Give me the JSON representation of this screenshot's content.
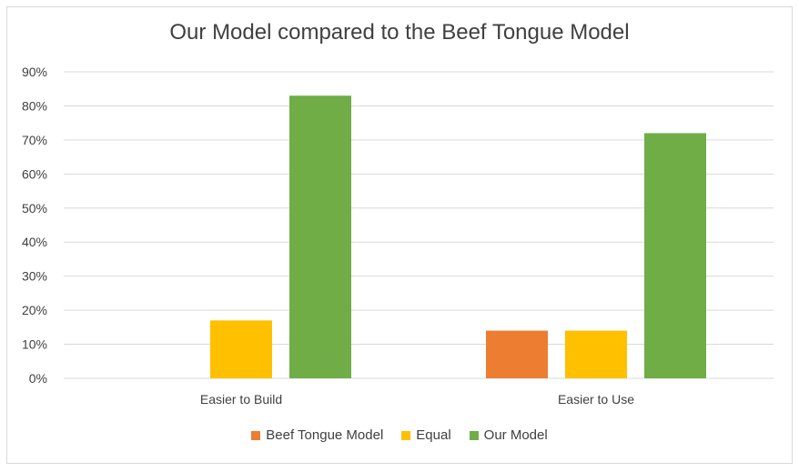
{
  "chart_data": {
    "type": "bar",
    "title": "Our Model compared to the Beef Tongue Model",
    "xlabel": "",
    "ylabel": "",
    "categories": [
      "Easier to Build",
      "Easier to Use"
    ],
    "series": [
      {
        "name": "Beef Tongue Model",
        "color": "#ed7d31",
        "values": [
          0,
          14
        ]
      },
      {
        "name": "Equal",
        "color": "#ffc000",
        "values": [
          17,
          14
        ]
      },
      {
        "name": "Our Model",
        "color": "#70ad47",
        "values": [
          83,
          72
        ]
      }
    ],
    "ylim": [
      0,
      90
    ],
    "yticks": [
      "0%",
      "10%",
      "20%",
      "30%",
      "40%",
      "50%",
      "60%",
      "70%",
      "80%",
      "90%"
    ],
    "grid": true,
    "legend_position": "bottom"
  }
}
